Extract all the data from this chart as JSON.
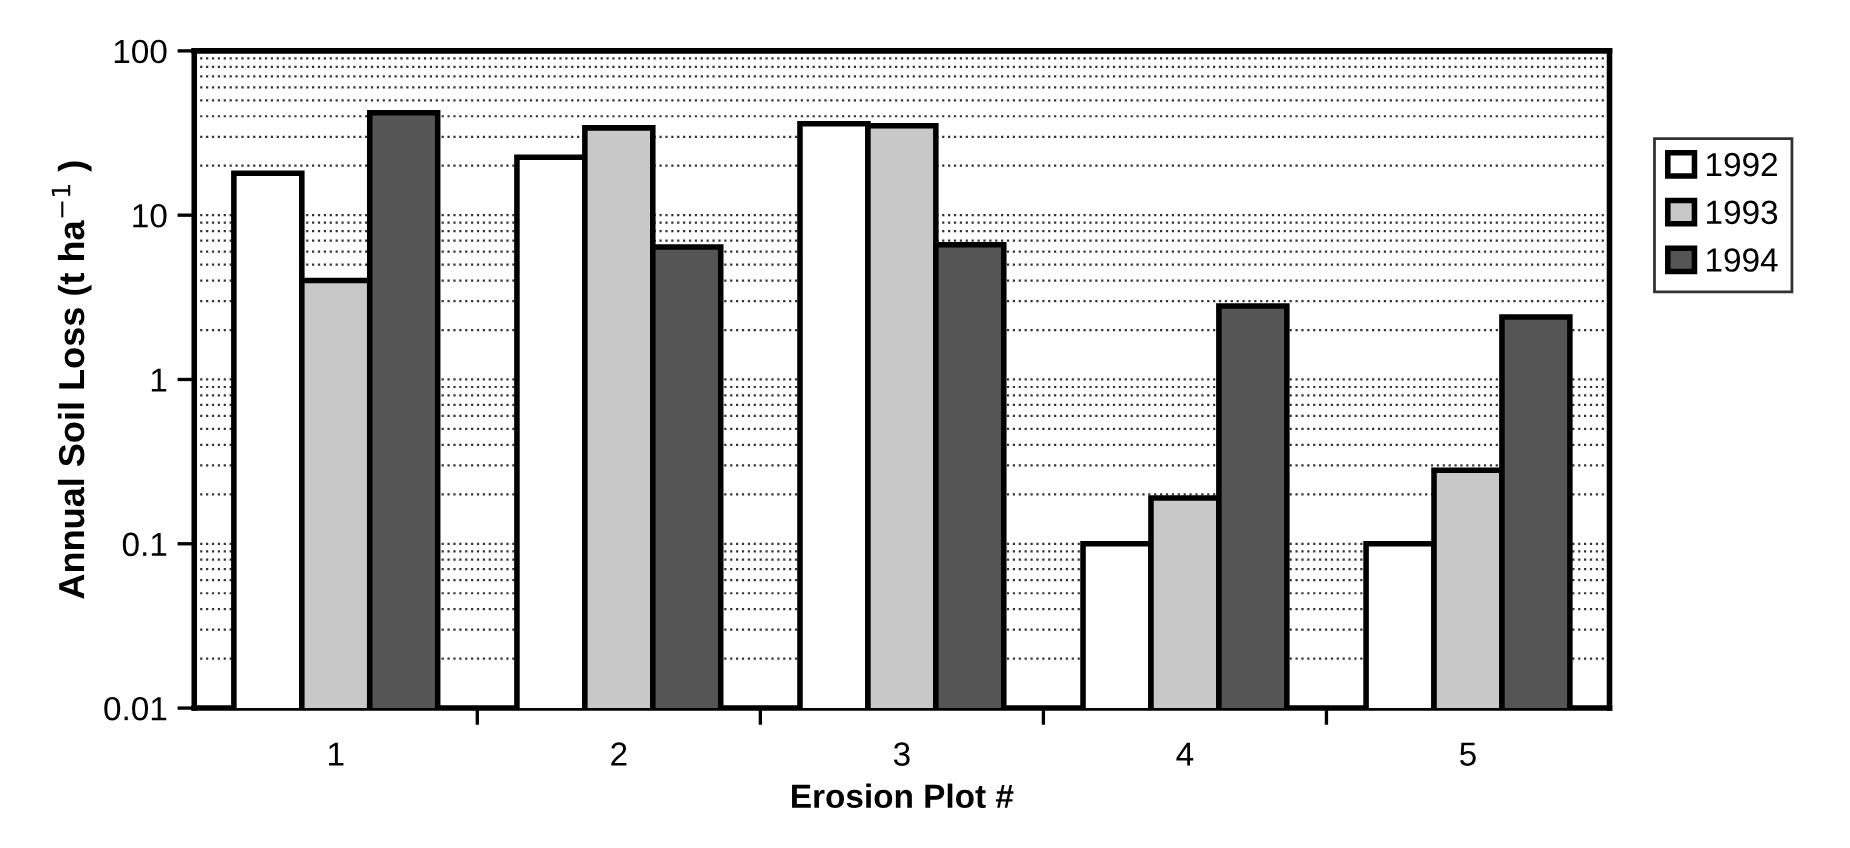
{
  "chart_data": {
    "type": "bar",
    "xlabel": "Erosion Plot #",
    "ylabel": "Annual Soil Loss (t ha$^{−1}$ )",
    "categories": [
      "1",
      "2",
      "3",
      "4",
      "5"
    ],
    "series": [
      {
        "name": "1992",
        "color": "#ffffff",
        "values": [
          18,
          22.5,
          36,
          0.1,
          0.1
        ]
      },
      {
        "name": "1993",
        "color": "#c8c8c8",
        "values": [
          4,
          34,
          35,
          0.19,
          0.28
        ]
      },
      {
        "name": "1994",
        "color": "#555555",
        "values": [
          42,
          6.4,
          6.6,
          2.8,
          2.4
        ]
      }
    ],
    "log": true,
    "ylim": [
      0.01,
      100
    ],
    "yticks": [
      0.01,
      0.1,
      1,
      10,
      100
    ],
    "grid": "y",
    "legend": "right",
    "line_style": "dotted"
  }
}
